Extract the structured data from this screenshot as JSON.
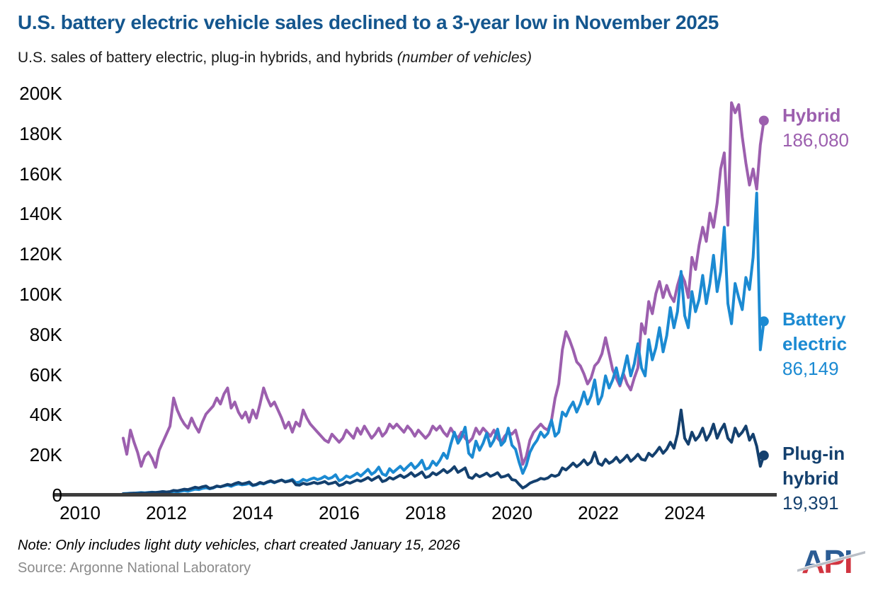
{
  "title": "U.S. battery electric vehicle sales declined to a 3-year low in November 2025",
  "subtitle": "U.S. sales of battery electric, plug-in hybrids, and hybrids ",
  "subtitle_italic": "(number of vehicles)",
  "note": "Note: Only includes light duty vehicles, chart created January 15, 2026",
  "source": "Source: Argonne National Laboratory",
  "logo_text": "API",
  "colors": {
    "title": "#14568E",
    "hybrid": "#9C5FAE",
    "battery_electric": "#1B8AD2",
    "plugin_hybrid": "#14406E",
    "axis": "#3d3d3d",
    "note_text": "#000000",
    "source_text": "#8a8a8a",
    "logo_blue": "#2B5C94",
    "logo_red": "#D13440",
    "logo_gray": "#B9BEC6"
  },
  "chart_data": {
    "type": "line",
    "title": "U.S. sales of battery electric, plug-in hybrids, and hybrids",
    "ylabel": "number of vehicles",
    "x_unit": "month",
    "x_range": [
      "2011-01",
      "2025-11"
    ],
    "values_unit": "thousand vehicles per month",
    "ylim_k": [
      0,
      200
    ],
    "grid": false,
    "legend_position": "right-annotations",
    "x_ticks": [
      {
        "v": 2010,
        "label": "2010"
      },
      {
        "v": 2012,
        "label": "2012"
      },
      {
        "v": 2014,
        "label": "2014"
      },
      {
        "v": 2016,
        "label": "2016"
      },
      {
        "v": 2018,
        "label": "2018"
      },
      {
        "v": 2020,
        "label": "2020"
      },
      {
        "v": 2022,
        "label": "2022"
      },
      {
        "v": 2024,
        "label": "2024"
      }
    ],
    "y_ticks": [
      {
        "v": 200,
        "label": "200K"
      },
      {
        "v": 180,
        "label": "180K"
      },
      {
        "v": 160,
        "label": "160K"
      },
      {
        "v": 140,
        "label": "140K"
      },
      {
        "v": 120,
        "label": "120K"
      },
      {
        "v": 100,
        "label": "100K"
      },
      {
        "v": 80,
        "label": "80K"
      },
      {
        "v": 60,
        "label": "60K"
      },
      {
        "v": 40,
        "label": "40K"
      },
      {
        "v": 20,
        "label": "20K"
      },
      {
        "v": 0,
        "label": "0"
      }
    ],
    "series": [
      {
        "id": "hybrid",
        "name": "Hybrid",
        "color": "#9C5FAE",
        "end_label_lines": [
          "Hybrid"
        ],
        "end_value_label": "186,080",
        "end_value": 186080,
        "values_k": [
          28,
          20,
          32,
          26,
          21,
          14,
          19,
          21,
          18,
          13.5,
          22,
          26,
          30,
          34,
          48,
          42,
          38,
          35,
          33,
          38,
          34,
          31,
          36,
          40,
          42,
          44,
          48,
          45,
          50,
          53,
          43,
          46,
          41,
          38,
          41,
          36,
          42,
          38,
          45,
          53,
          48,
          44,
          46,
          42,
          38,
          33,
          36,
          31,
          36,
          34,
          42,
          38,
          35,
          33,
          31,
          29,
          27,
          26,
          30,
          28,
          26,
          28,
          32,
          30,
          28,
          33,
          30,
          34,
          31,
          28,
          30,
          33,
          29,
          31,
          35,
          33,
          35,
          33,
          31,
          34,
          32,
          29,
          32,
          30,
          28,
          30,
          34,
          32,
          34,
          31,
          29,
          33,
          30,
          28,
          31,
          28,
          26,
          28,
          33,
          30,
          33,
          31,
          29,
          32,
          28,
          26,
          29,
          31,
          30,
          32,
          25,
          15,
          19,
          27,
          31,
          33,
          35,
          33,
          32,
          37,
          48,
          55,
          72,
          81,
          77,
          72,
          66,
          64,
          60,
          55,
          58,
          64,
          66,
          70,
          78,
          70,
          62,
          58,
          54,
          60,
          55,
          52,
          58,
          63,
          85,
          80,
          96,
          90,
          100,
          106,
          98,
          104,
          99,
          96,
          104,
          110,
          106,
          98,
          118,
          112,
          124,
          133,
          126,
          140,
          133,
          145,
          162,
          170,
          134,
          195,
          190,
          194,
          178,
          165,
          154,
          162,
          152,
          174,
          186.08
        ]
      },
      {
        "id": "battery-electric",
        "name": "Battery electric",
        "color": "#1B8AD2",
        "end_label_lines": [
          "Battery",
          "electric"
        ],
        "end_value_label": "86,149",
        "end_value": 86149,
        "values_k": [
          0.4,
          0.5,
          0.6,
          0.6,
          0.8,
          0.9,
          0.8,
          1.0,
          1.1,
          1.0,
          1.2,
          1.4,
          1.2,
          1.1,
          1.5,
          1.3,
          1.6,
          1.9,
          1.6,
          2.1,
          2.6,
          2.4,
          3.0,
          3.3,
          2.8,
          3.2,
          4.0,
          3.8,
          4.2,
          4.6,
          4.0,
          4.8,
          5.2,
          4.8,
          5.0,
          5.5,
          4.4,
          4.8,
          5.6,
          5.2,
          6.0,
          6.5,
          5.8,
          6.6,
          7.2,
          6.4,
          6.8,
          7.5,
          5.8,
          6.2,
          7.5,
          6.8,
          7.6,
          8.2,
          7.4,
          8.0,
          9.0,
          7.8,
          8.4,
          9.8,
          6.8,
          7.6,
          9.2,
          8.4,
          9.4,
          10.6,
          9.2,
          10.8,
          12.5,
          10.0,
          11.2,
          13.6,
          10.2,
          9.4,
          12.8,
          11.0,
          12.5,
          14.0,
          12.0,
          13.8,
          15.5,
          13.0,
          14.6,
          17.0,
          12.5,
          13.2,
          16.5,
          14.5,
          17.0,
          20.5,
          18.0,
          25.0,
          31.0,
          25.5,
          28.5,
          33.5,
          20.5,
          18.5,
          26.5,
          22.0,
          25.5,
          30.5,
          24.0,
          27.0,
          32.5,
          24.5,
          26.5,
          33.0,
          24.5,
          22.5,
          16.0,
          10.5,
          14.5,
          21.0,
          24.5,
          27.0,
          31.0,
          28.5,
          30.5,
          37.0,
          29,
          31,
          41,
          39,
          43,
          46,
          41,
          45,
          51,
          45,
          49,
          57,
          45,
          49,
          59,
          53,
          57,
          63,
          55,
          61,
          69,
          59,
          65,
          75,
          63,
          59,
          77,
          67,
          73,
          83,
          71,
          79,
          93,
          83,
          91,
          111,
          89,
          83,
          101,
          91,
          97,
          109,
          95,
          105,
          119,
          101,
          111,
          133,
          95,
          85,
          105,
          98,
          92,
          108,
          102,
          118,
          150,
          72,
          86.15
        ]
      },
      {
        "id": "plugin-hybrid",
        "name": "Plug-in hybrid",
        "color": "#14406E",
        "end_label_lines": [
          "Plug-in",
          "hybrid"
        ],
        "end_value_label": "19,391",
        "end_value": 19391,
        "values_k": [
          0.3,
          0.3,
          0.5,
          0.6,
          0.5,
          0.7,
          0.6,
          0.8,
          1.0,
          0.9,
          1.1,
          1.4,
          1.2,
          1.4,
          2.0,
          1.8,
          2.2,
          2.6,
          2.4,
          3.0,
          3.6,
          3.2,
          3.8,
          4.2,
          3.0,
          3.4,
          4.2,
          3.8,
          4.4,
          5.0,
          4.6,
          5.4,
          6.0,
          5.2,
          5.6,
          6.2,
          4.6,
          5.0,
          6.0,
          5.4,
          6.2,
          6.8,
          6.0,
          6.6,
          7.2,
          6.2,
          6.6,
          7.0,
          4.8,
          4.6,
          5.6,
          5.0,
          5.4,
          6.0,
          5.4,
          5.8,
          6.4,
          5.2,
          5.6,
          6.2,
          4.4,
          5.0,
          6.2,
          5.6,
          6.4,
          7.2,
          6.6,
          7.4,
          8.4,
          7.0,
          8.0,
          9.0,
          6.4,
          7.0,
          8.4,
          7.6,
          8.6,
          9.6,
          8.4,
          9.4,
          10.8,
          9.0,
          10.0,
          11.2,
          8.4,
          9.0,
          10.8,
          9.8,
          11.0,
          12.4,
          10.8,
          12.0,
          13.8,
          11.0,
          12.0,
          13.2,
          8.6,
          8.0,
          10.0,
          8.8,
          9.6,
          10.6,
          9.0,
          9.8,
          10.8,
          8.6,
          9.0,
          9.8,
          7.4,
          7.0,
          5.0,
          3.2,
          4.2,
          5.6,
          6.4,
          7.0,
          8.0,
          7.6,
          8.2,
          9.6,
          9.0,
          9.8,
          13.2,
          12.2,
          13.8,
          15.6,
          13.8,
          15.2,
          17.2,
          14.8,
          16.2,
          21.0,
          15.5,
          14.5,
          17.5,
          15.5,
          16.5,
          18.5,
          16.0,
          17.5,
          19.5,
          16.5,
          18.0,
          20.0,
          17.5,
          17.0,
          20.5,
          19.0,
          21.0,
          23.5,
          20.5,
          22.5,
          26.0,
          23.0,
          30.0,
          42.0,
          28,
          25,
          31,
          27,
          29,
          33,
          27,
          30,
          35,
          28,
          32,
          35,
          28,
          26,
          33,
          29,
          31,
          34,
          27,
          30,
          24,
          14,
          19.39
        ]
      }
    ]
  }
}
